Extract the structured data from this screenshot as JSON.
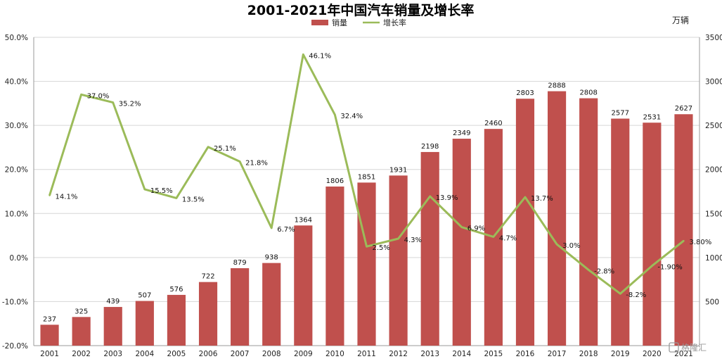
{
  "chart_data": {
    "type": "bar",
    "title": "2001-2021年中国汽车销量及增长率",
    "unit_label": "万辆",
    "categories": [
      "2001",
      "2002",
      "2003",
      "2004",
      "2005",
      "2006",
      "2007",
      "2008",
      "2009",
      "2010",
      "2011",
      "2012",
      "2013",
      "2014",
      "2015",
      "2016",
      "2017",
      "2018",
      "2019",
      "2020",
      "2021"
    ],
    "series": [
      {
        "name": "销量",
        "type": "bar",
        "axis": "right",
        "color": "#c0504d",
        "values": [
          237,
          325,
          439,
          507,
          576,
          722,
          879,
          938,
          1364,
          1806,
          1851,
          1931,
          2198,
          2349,
          2460,
          2803,
          2888,
          2808,
          2577,
          2531,
          2627
        ],
        "labels": [
          "237",
          "325",
          "439",
          "507",
          "576",
          "722",
          "879",
          "938",
          "1364",
          "1806",
          "1851",
          "1931",
          "2198",
          "2349",
          "2460",
          "2803",
          "2888",
          "2808",
          "2577",
          "2531",
          "2627"
        ]
      },
      {
        "name": "增长率",
        "type": "line",
        "axis": "left",
        "color": "#9bbb59",
        "values": [
          14.1,
          37.0,
          35.2,
          15.5,
          13.5,
          25.1,
          21.8,
          6.7,
          46.1,
          32.4,
          2.5,
          4.3,
          13.9,
          6.9,
          4.7,
          13.7,
          3.0,
          -2.8,
          -8.2,
          -1.9,
          3.8
        ],
        "labels": [
          "14.1%",
          "37.0%",
          "35.2%",
          "15.5%",
          "13.5%",
          "25.1%",
          "21.8%",
          "6.7%",
          "46.1%",
          "32.4%",
          "2.5%",
          "4.3%",
          "13.9%",
          "6.9%",
          "4.7%",
          "13.7%",
          "3.0%",
          "-2.8%",
          "-8.2%",
          "-1.90%",
          "3.80%"
        ]
      }
    ],
    "y_left": {
      "min": -20,
      "max": 50,
      "step": 10,
      "ticks": [
        "-20.0%",
        "-10.0%",
        "0.0%",
        "10.0%",
        "20.0%",
        "30.0%",
        "40.0%",
        "50.0%"
      ]
    },
    "y_right": {
      "min": 0,
      "max": 3500,
      "step": 500,
      "ticks": [
        "500",
        "1000",
        "1500",
        "2000",
        "2500",
        "3000",
        "3500"
      ]
    },
    "grid": true,
    "legend_position": "top-center"
  },
  "watermark": "格隆汇"
}
